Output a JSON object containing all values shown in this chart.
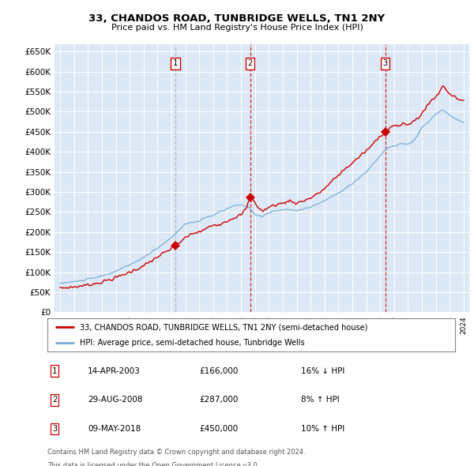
{
  "title": "33, CHANDOS ROAD, TUNBRIDGE WELLS, TN1 2NY",
  "subtitle": "Price paid vs. HM Land Registry's House Price Index (HPI)",
  "ylim": [
    0,
    680000
  ],
  "yticks": [
    0,
    50000,
    100000,
    150000,
    200000,
    250000,
    300000,
    350000,
    400000,
    450000,
    500000,
    550000,
    600000,
    650000
  ],
  "background_color": "#dce8f5",
  "plot_bg_color": "#dce8f5",
  "red_color": "#cc0000",
  "blue_color": "#7aaed6",
  "vline1_color": "#aaaacc",
  "vline2_color": "#cc0000",
  "vline3_color": "#cc0000",
  "sale_dates": [
    2003.29,
    2008.66,
    2018.36
  ],
  "sale_prices": [
    166000,
    287000,
    450000
  ],
  "legend_label_red": "33, CHANDOS ROAD, TUNBRIDGE WELLS, TN1 2NY (semi-detached house)",
  "legend_label_blue": "HPI: Average price, semi-detached house, Tunbridge Wells",
  "transactions": [
    {
      "num": 1,
      "date": "14-APR-2003",
      "price": "£166,000",
      "pct": "16%",
      "dir": "↓",
      "label": "HPI"
    },
    {
      "num": 2,
      "date": "29-AUG-2008",
      "price": "£287,000",
      "pct": "8%",
      "dir": "↑",
      "label": "HPI"
    },
    {
      "num": 3,
      "date": "09-MAY-2018",
      "price": "£450,000",
      "pct": "10%",
      "dir": "↑",
      "label": "HPI"
    }
  ],
  "footnote1": "Contains HM Land Registry data © Crown copyright and database right 2024.",
  "footnote2": "This data is licensed under the Open Government Licence v3.0.",
  "hpi_years": [
    1995.0,
    1995.08,
    1995.17,
    1995.25,
    1995.33,
    1995.42,
    1995.5,
    1995.58,
    1995.67,
    1995.75,
    1995.83,
    1995.92,
    1996.0,
    1996.08,
    1996.17,
    1996.25,
    1996.33,
    1996.42,
    1996.5,
    1996.58,
    1996.67,
    1996.75,
    1996.83,
    1996.92,
    1997.0,
    1997.08,
    1997.17,
    1997.25,
    1997.33,
    1997.42,
    1997.5,
    1997.58,
    1997.67,
    1997.75,
    1997.83,
    1997.92,
    1998.0,
    1998.08,
    1998.17,
    1998.25,
    1998.33,
    1998.42,
    1998.5,
    1998.58,
    1998.67,
    1998.75,
    1998.83,
    1998.92,
    1999.0,
    1999.08,
    1999.17,
    1999.25,
    1999.33,
    1999.42,
    1999.5,
    1999.58,
    1999.67,
    1999.75,
    1999.83,
    1999.92,
    2000.0,
    2000.08,
    2000.17,
    2000.25,
    2000.33,
    2000.42,
    2000.5,
    2000.58,
    2000.67,
    2000.75,
    2000.83,
    2000.92,
    2001.0,
    2001.08,
    2001.17,
    2001.25,
    2001.33,
    2001.42,
    2001.5,
    2001.58,
    2001.67,
    2001.75,
    2001.83,
    2001.92,
    2002.0,
    2002.08,
    2002.17,
    2002.25,
    2002.33,
    2002.42,
    2002.5,
    2002.58,
    2002.67,
    2002.75,
    2002.83,
    2002.92,
    2003.0,
    2003.08,
    2003.17,
    2003.25,
    2003.33,
    2003.42,
    2003.5,
    2003.58,
    2003.67,
    2003.75,
    2003.83,
    2003.92,
    2004.0,
    2004.08,
    2004.17,
    2004.25,
    2004.33,
    2004.42,
    2004.5,
    2004.58,
    2004.67,
    2004.75,
    2004.83,
    2004.92,
    2005.0,
    2005.08,
    2005.17,
    2005.25,
    2005.33,
    2005.42,
    2005.5,
    2005.58,
    2005.67,
    2005.75,
    2005.83,
    2005.92,
    2006.0,
    2006.08,
    2006.17,
    2006.25,
    2006.33,
    2006.42,
    2006.5,
    2006.58,
    2006.67,
    2006.75,
    2006.83,
    2006.92,
    2007.0,
    2007.08,
    2007.17,
    2007.25,
    2007.33,
    2007.42,
    2007.5,
    2007.58,
    2007.67,
    2007.75,
    2007.83,
    2007.92,
    2008.0,
    2008.08,
    2008.17,
    2008.25,
    2008.33,
    2008.42,
    2008.5,
    2008.58,
    2008.67,
    2008.75,
    2008.83,
    2008.92,
    2009.0,
    2009.08,
    2009.17,
    2009.25,
    2009.33,
    2009.42,
    2009.5,
    2009.58,
    2009.67,
    2009.75,
    2009.83,
    2009.92,
    2010.0,
    2010.08,
    2010.17,
    2010.25,
    2010.33,
    2010.42,
    2010.5,
    2010.58,
    2010.67,
    2010.75,
    2010.83,
    2010.92,
    2011.0,
    2011.08,
    2011.17,
    2011.25,
    2011.33,
    2011.42,
    2011.5,
    2011.58,
    2011.67,
    2011.75,
    2011.83,
    2011.92,
    2012.0,
    2012.08,
    2012.17,
    2012.25,
    2012.33,
    2012.42,
    2012.5,
    2012.58,
    2012.67,
    2012.75,
    2012.83,
    2012.92,
    2013.0,
    2013.08,
    2013.17,
    2013.25,
    2013.33,
    2013.42,
    2013.5,
    2013.58,
    2013.67,
    2013.75,
    2013.83,
    2013.92,
    2014.0,
    2014.08,
    2014.17,
    2014.25,
    2014.33,
    2014.42,
    2014.5,
    2014.58,
    2014.67,
    2014.75,
    2014.83,
    2014.92,
    2015.0,
    2015.08,
    2015.17,
    2015.25,
    2015.33,
    2015.42,
    2015.5,
    2015.58,
    2015.67,
    2015.75,
    2015.83,
    2015.92,
    2016.0,
    2016.08,
    2016.17,
    2016.25,
    2016.33,
    2016.42,
    2016.5,
    2016.58,
    2016.67,
    2016.75,
    2016.83,
    2016.92,
    2017.0,
    2017.08,
    2017.17,
    2017.25,
    2017.33,
    2017.42,
    2017.5,
    2017.58,
    2017.67,
    2017.75,
    2017.83,
    2017.92,
    2018.0,
    2018.08,
    2018.17,
    2018.25,
    2018.33,
    2018.42,
    2018.5,
    2018.58,
    2018.67,
    2018.75,
    2018.83,
    2018.92,
    2019.0,
    2019.08,
    2019.17,
    2019.25,
    2019.33,
    2019.42,
    2019.5,
    2019.58,
    2019.67,
    2019.75,
    2019.83,
    2019.92,
    2020.0,
    2020.08,
    2020.17,
    2020.25,
    2020.33,
    2020.42,
    2020.5,
    2020.58,
    2020.67,
    2020.75,
    2020.83,
    2020.92,
    2021.0,
    2021.08,
    2021.17,
    2021.25,
    2021.33,
    2021.42,
    2021.5,
    2021.58,
    2021.67,
    2021.75,
    2021.83,
    2021.92,
    2022.0,
    2022.08,
    2022.17,
    2022.25,
    2022.33,
    2022.42,
    2022.5,
    2022.58,
    2022.67,
    2022.75,
    2022.83,
    2022.92,
    2023.0,
    2023.08,
    2023.17,
    2023.25,
    2023.33,
    2023.42,
    2023.5,
    2023.58,
    2023.67,
    2023.75,
    2023.83,
    2023.92,
    2024.0
  ]
}
